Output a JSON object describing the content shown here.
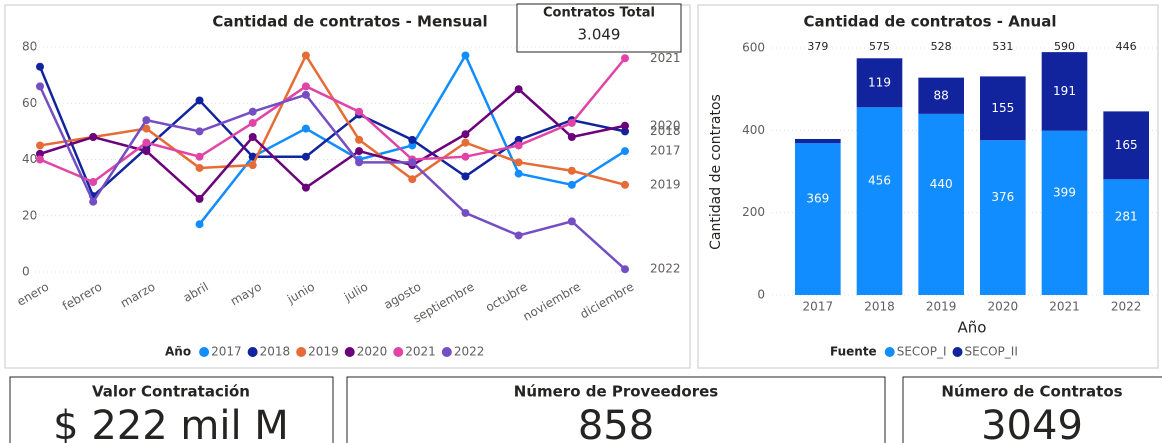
{
  "chart_data": [
    {
      "type": "line",
      "title": "Cantidad de contratos - Mensual",
      "categories": [
        "enero",
        "febrero",
        "marzo",
        "abril",
        "mayo",
        "junio",
        "julio",
        "agosto",
        "septiembre",
        "octubre",
        "noviembre",
        "diciembre"
      ],
      "ylim": [
        0,
        80
      ],
      "yticks": [
        0,
        20,
        40,
        60,
        80
      ],
      "grid": true,
      "legend_title": "Año",
      "series": [
        {
          "name": "2017",
          "color": "#118dff",
          "values": [
            null,
            null,
            null,
            17,
            41,
            51,
            40,
            45,
            77,
            35,
            31,
            43
          ]
        },
        {
          "name": "2018",
          "color": "#12239e",
          "values": [
            73,
            27,
            44,
            61,
            41,
            41,
            56,
            47,
            34,
            47,
            54,
            50
          ]
        },
        {
          "name": "2019",
          "color": "#e66c37",
          "values": [
            45,
            48,
            51,
            37,
            38,
            77,
            47,
            33,
            46,
            39,
            36,
            31
          ]
        },
        {
          "name": "2020",
          "color": "#6b007b",
          "values": [
            42,
            48,
            43,
            26,
            48,
            30,
            43,
            38,
            49,
            65,
            48,
            52
          ]
        },
        {
          "name": "2021",
          "color": "#e044a7",
          "values": [
            40,
            32,
            46,
            41,
            53,
            66,
            57,
            40,
            41,
            45,
            53,
            76
          ]
        },
        {
          "name": "2022",
          "color": "#744ec2",
          "values": [
            66,
            25,
            54,
            50,
            57,
            63,
            39,
            39,
            21,
            13,
            18,
            1
          ]
        }
      ],
      "annotation": {
        "title": "Contratos Total",
        "value": "3.049"
      }
    },
    {
      "type": "stacked_bar",
      "title": "Cantidad de contratos - Anual",
      "categories": [
        "2017",
        "2018",
        "2019",
        "2020",
        "2021",
        "2022"
      ],
      "xlabel": "Año",
      "ylabel": "Cantidad de contratos",
      "ylim": [
        0,
        600
      ],
      "yticks": [
        0,
        200,
        400,
        600
      ],
      "grid": true,
      "legend_title": "Fuente",
      "series": [
        {
          "name": "SECOP_I",
          "color": "#118dff",
          "values": [
            369,
            456,
            440,
            376,
            399,
            281
          ]
        },
        {
          "name": "SECOP_II",
          "color": "#12239e",
          "values": [
            10,
            119,
            88,
            155,
            191,
            165
          ]
        }
      ],
      "totals": [
        379,
        575,
        528,
        531,
        590,
        446
      ]
    }
  ],
  "kpis": [
    {
      "title": "Valor Contratación",
      "value": "$ 222 mil M"
    },
    {
      "title": "Número de Proveedores",
      "value": 858
    },
    {
      "title": "Número de Contratos",
      "value": 3049
    }
  ]
}
